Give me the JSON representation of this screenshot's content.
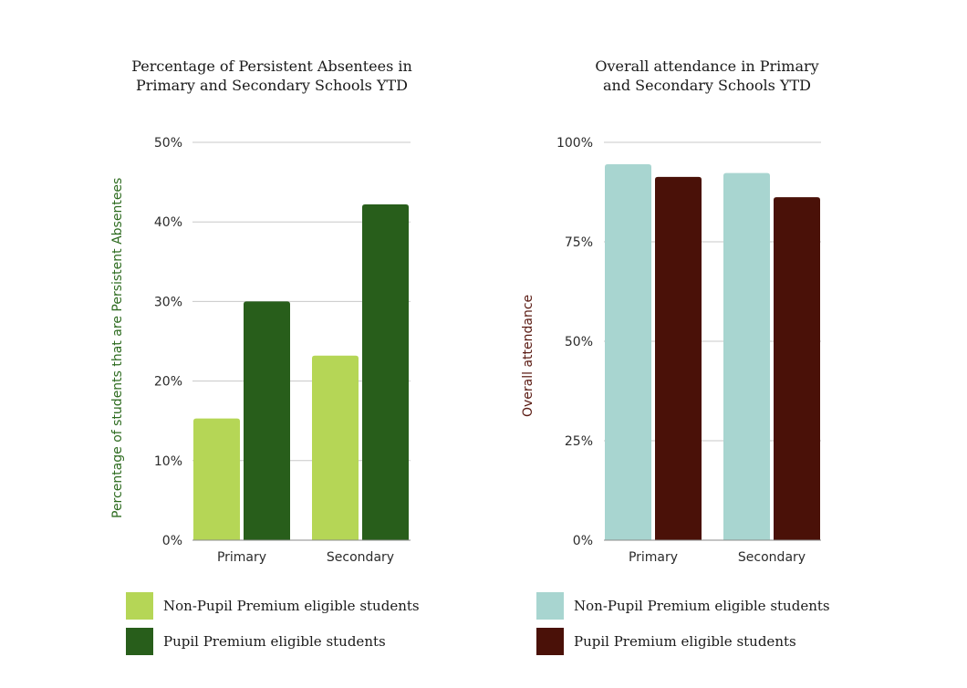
{
  "chart_data": [
    {
      "type": "bar",
      "title": "Percentage of Persistent Absentees in Primary and Secondary Schools YTD",
      "title_lines": [
        "Percentage of Persistent Absentees in",
        "Primary and Secondary Schools YTD"
      ],
      "xlabel": "",
      "ylabel": "Percentage of students that are Persistent Absentees",
      "categories": [
        "Primary",
        "Secondary"
      ],
      "ylim": [
        0,
        50
      ],
      "yticks": [
        0,
        10,
        20,
        30,
        40,
        50
      ],
      "ytick_labels": [
        "0%",
        "10%",
        "20%",
        "30%",
        "40%",
        "50%"
      ],
      "grid": true,
      "legend_position": "bottom",
      "series": [
        {
          "name": "Non-Pupil Premium eligible students",
          "values": [
            15.3,
            23.2
          ],
          "color": "#b5d656"
        },
        {
          "name": "Pupil Premium eligible students",
          "values": [
            30.0,
            42.2
          ],
          "color": "#285e1b"
        }
      ],
      "ylabel_color": "#2d6b1f"
    },
    {
      "type": "bar",
      "title": "Overall attendance in Primary and Secondary Schools YTD",
      "title_lines": [
        "Overall attendance in Primary",
        "and Secondary Schools YTD"
      ],
      "xlabel": "",
      "ylabel": "Overall attendance",
      "categories": [
        "Primary",
        "Secondary"
      ],
      "ylim": [
        0,
        100
      ],
      "yticks": [
        0,
        25,
        50,
        75,
        100
      ],
      "ytick_labels": [
        "0%",
        "25%",
        "50%",
        "75%",
        "100%"
      ],
      "grid": true,
      "legend_position": "bottom",
      "series": [
        {
          "name": "Non-Pupil Premium eligible students",
          "values": [
            94.5,
            92.3
          ],
          "color": "#a8d5d0"
        },
        {
          "name": "Pupil Premium eligible students",
          "values": [
            91.3,
            86.2
          ],
          "color": "#4a1108"
        }
      ],
      "ylabel_color": "#5a1a12"
    }
  ]
}
